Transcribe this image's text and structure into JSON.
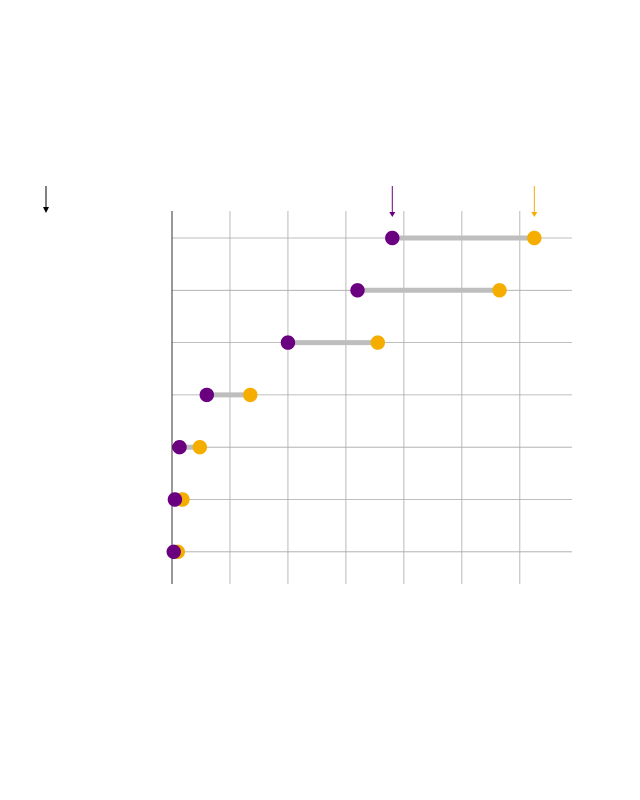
{
  "chart_data": {
    "type": "dot",
    "title": "",
    "xlabel": "",
    "ylabel": "",
    "categories": [
      "",
      "",
      "",
      "",
      "",
      "",
      ""
    ],
    "xlim": [
      0,
      6.9
    ],
    "x_gridlines": [
      0,
      1,
      2,
      3,
      4,
      5,
      6
    ],
    "grid": true,
    "series": [
      {
        "color": "#6a0080",
        "values": [
          3.8,
          3.2,
          2.0,
          0.6,
          0.13,
          0.05,
          0.03
        ]
      },
      {
        "color": "#f5ad00",
        "values": [
          6.25,
          5.65,
          3.55,
          1.35,
          0.48,
          0.18,
          0.1
        ]
      }
    ],
    "connector_color": "#bebebe",
    "series_marker_arrows": true,
    "category_axis_arrow": true
  }
}
